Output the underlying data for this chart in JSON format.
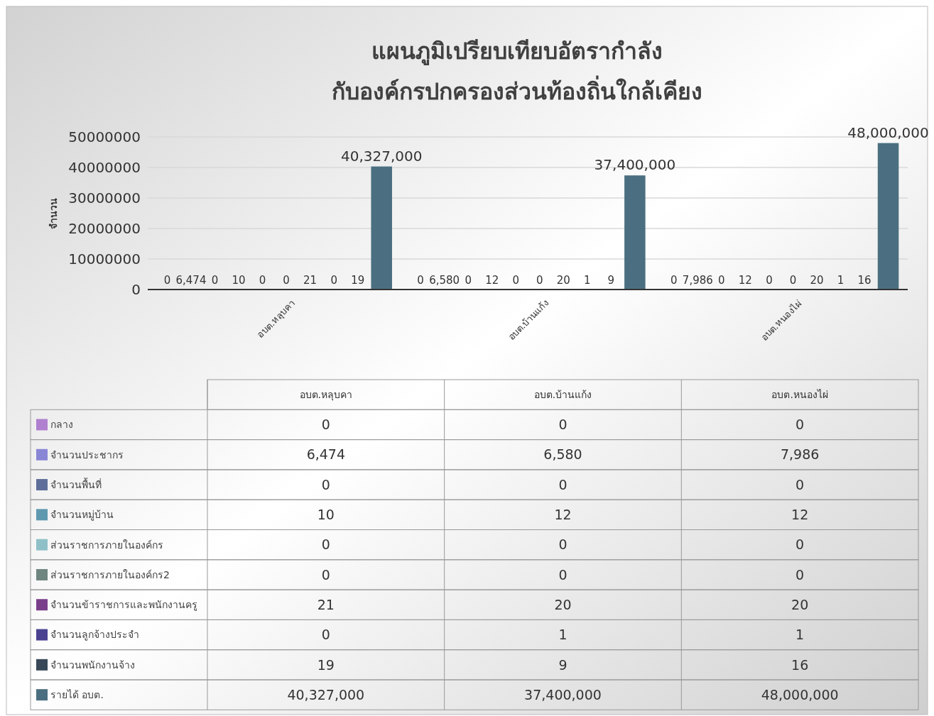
{
  "chart_data": {
    "type": "bar",
    "title": "แผนภูมิเปรียบเทียบอัตรากำลัง\nกับองค์กรปกครองส่วนท้องถิ่นใกล้เคียง",
    "ylabel": "จำนวน",
    "categories": [
      "อบต.หลุบคา",
      "อบต.บ้านแก้ง",
      "อบต.หนองไผ่"
    ],
    "series": [
      {
        "name": "กลาง",
        "color": "#b07fd0",
        "values": [
          0,
          0,
          0
        ],
        "value_labels": [
          "0",
          "0",
          "0"
        ]
      },
      {
        "name": "จำนวนประชากร",
        "color": "#8a86d6",
        "values": [
          6474,
          6580,
          7986
        ],
        "value_labels": [
          "6,474",
          "6,580",
          "7,986"
        ]
      },
      {
        "name": "จำนวนพื้นที่",
        "color": "#5e6e9a",
        "values": [
          0,
          0,
          0
        ],
        "value_labels": [
          "0",
          "0",
          "0"
        ]
      },
      {
        "name": "จำนวนหมู่บ้าน",
        "color": "#5f99b0",
        "values": [
          10,
          12,
          12
        ],
        "value_labels": [
          "10",
          "12",
          "12"
        ]
      },
      {
        "name": "ส่วนราชการภายในองค์กร",
        "color": "#8fc0c8",
        "values": [
          0,
          0,
          0
        ],
        "value_labels": [
          "0",
          "0",
          "0"
        ]
      },
      {
        "name": "ส่วนราชการภายในองค์กร2",
        "color": "#6f8580",
        "values": [
          0,
          0,
          0
        ],
        "value_labels": [
          "0",
          "0",
          "0"
        ]
      },
      {
        "name": "จำนวนข้าราชการและพนักงานครู",
        "color": "#7a3f8a",
        "values": [
          21,
          20,
          20
        ],
        "value_labels": [
          "21",
          "20",
          "20"
        ]
      },
      {
        "name": "จำนวนลูกจ้างประจำ",
        "color": "#4a4290",
        "values": [
          0,
          1,
          1
        ],
        "value_labels": [
          "0",
          "1",
          "1"
        ]
      },
      {
        "name": "จำนวนพนักงานจ้าง",
        "color": "#384858",
        "values": [
          19,
          9,
          16
        ],
        "value_labels": [
          "19",
          "9",
          "16"
        ]
      },
      {
        "name": "รายได้ อบต.",
        "color": "#4b6f80",
        "values": [
          40327000,
          37400000,
          48000000
        ],
        "value_labels": [
          "40,327,000",
          "37,400,000",
          "48,000,000"
        ]
      }
    ],
    "ylim": [
      0,
      50000000
    ],
    "yticks": [
      0,
      10000000,
      20000000,
      30000000,
      40000000,
      50000000
    ],
    "grid": "y",
    "legend": "bottom"
  }
}
